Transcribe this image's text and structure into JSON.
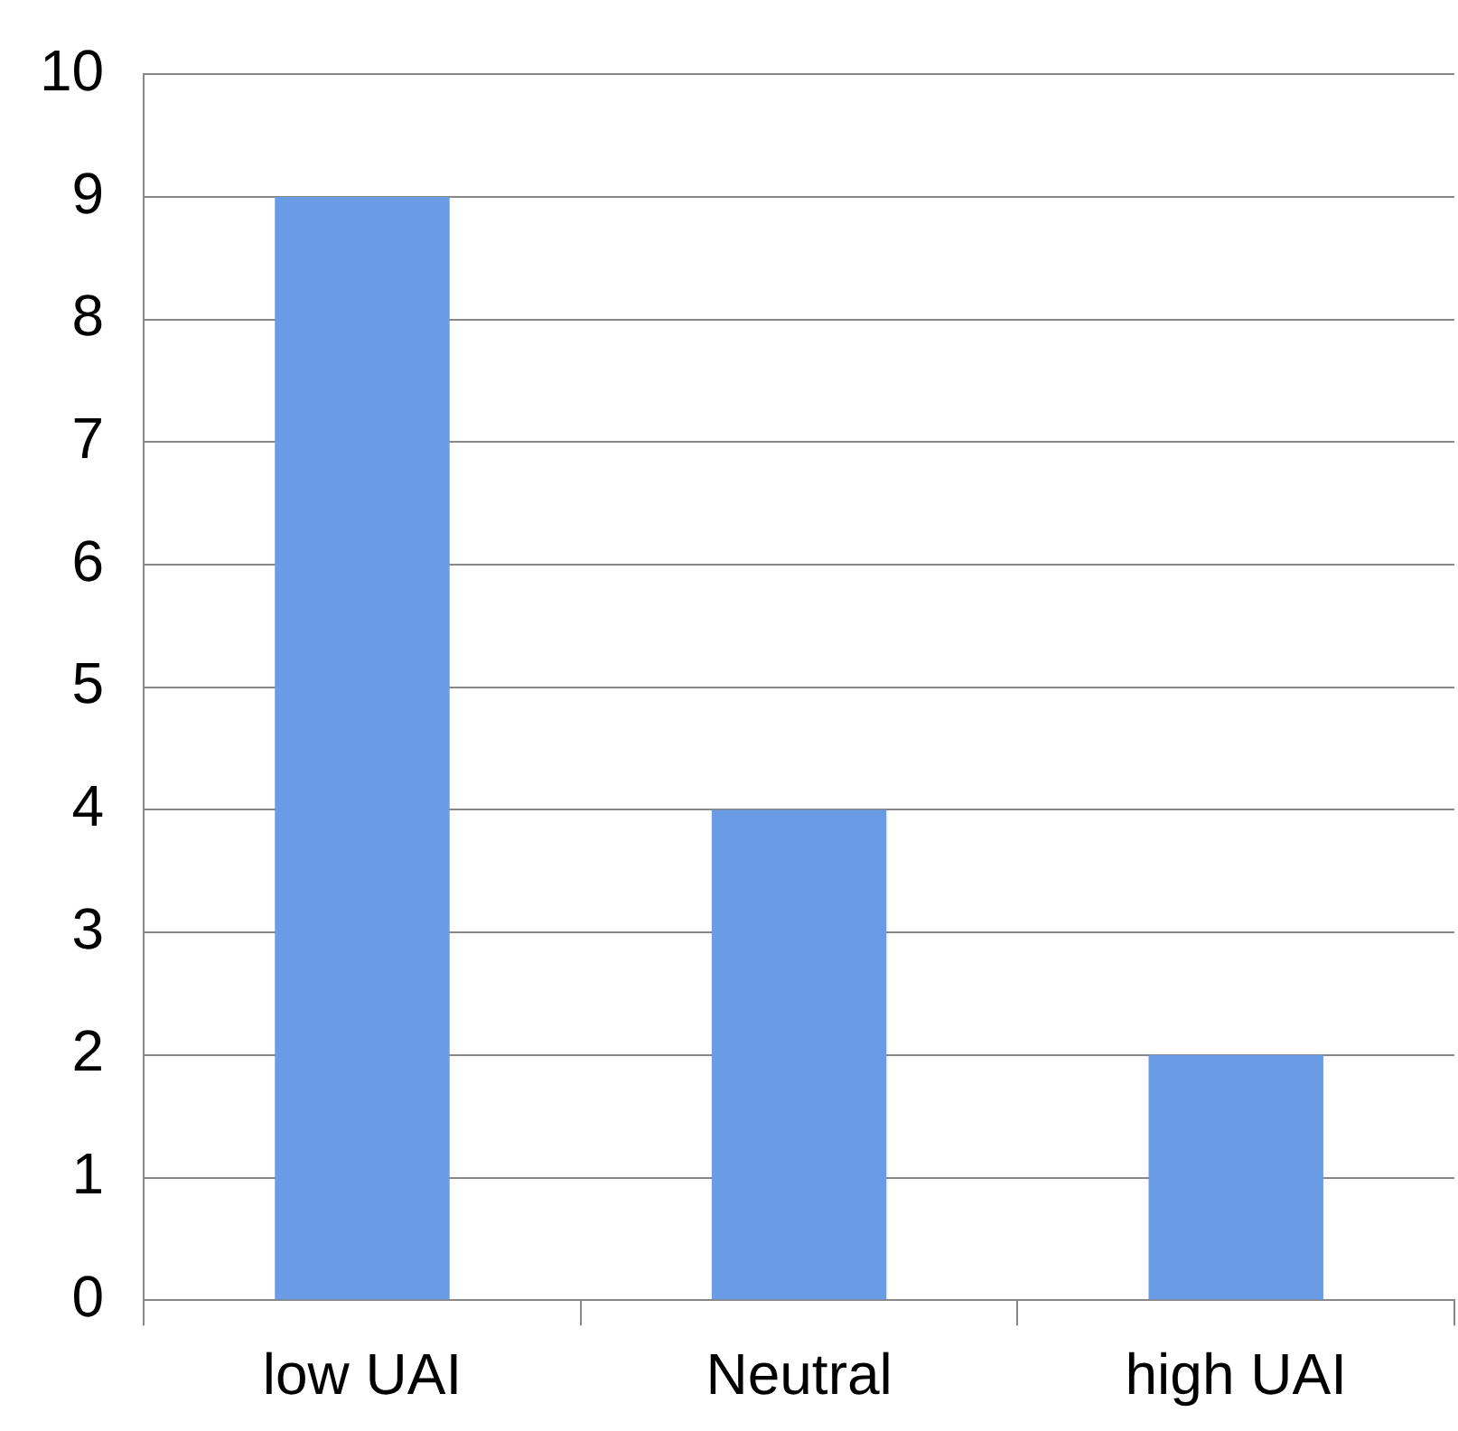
{
  "chart_data": {
    "type": "bar",
    "categories": [
      "low UAI",
      "Neutral",
      "high UAI"
    ],
    "values": [
      9,
      4,
      2
    ],
    "color": "#6a9ce6",
    "ylim": [
      0,
      10
    ],
    "yticks": [
      0,
      1,
      2,
      3,
      4,
      5,
      6,
      7,
      8,
      9,
      10
    ],
    "grid": "y",
    "legend": false
  }
}
